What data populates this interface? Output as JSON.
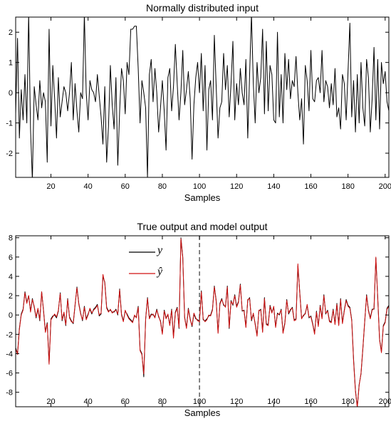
{
  "chart_data": [
    {
      "type": "line",
      "title": "Normally distributed input",
      "xlabel": "Samples",
      "ylabel": "",
      "xlim": [
        1,
        202
      ],
      "ylim": [
        -2.8,
        2.5
      ],
      "xticks": [
        20,
        40,
        60,
        80,
        100,
        120,
        140,
        160,
        180,
        200
      ],
      "yticks": [
        -2,
        -1,
        0,
        1,
        2
      ],
      "grid": false,
      "series": [
        {
          "color": "#000000",
          "x_start": 1,
          "values": [
            -0.7,
            1.8,
            -1.5,
            0.1,
            -0.9,
            0.6,
            -1.0,
            2.6,
            -1.2,
            -2.9,
            0.2,
            -0.4,
            -0.9,
            0.4,
            -0.5,
            0.0,
            -0.3,
            -2.3,
            2.1,
            -1.1,
            0.9,
            -0.2,
            -1.5,
            0.5,
            -0.8,
            -0.3,
            0.2,
            0.0,
            -0.6,
            0.0,
            1.0,
            -0.9,
            0.3,
            -0.6,
            -1.3,
            0.0,
            -0.2,
            2.6,
            0.0,
            -0.9,
            0.4,
            0.1,
            0.0,
            -0.3,
            0.6,
            -0.1,
            -0.8,
            -1.7,
            0.2,
            -2.3,
            -1.1,
            0.9,
            -0.4,
            -1.2,
            0.5,
            -2.4,
            -0.6,
            0.8,
            0.4,
            -0.7,
            1.0,
            0.6,
            2.1,
            2.1,
            2.2,
            2.2,
            0.8,
            -1.0,
            0.4,
            0.0,
            -0.5,
            -2.8,
            0.6,
            1.1,
            -0.3,
            0.8,
            0.0,
            -1.3,
            -0.5,
            0.4,
            -0.6,
            -1.9,
            0.5,
            0.8,
            -0.6,
            0.2,
            1.6,
            0.3,
            -0.9,
            0.0,
            1.4,
            -0.4,
            0.1,
            0.7,
            -0.2,
            -2.2,
            -0.4,
            0.5,
            1.0,
            0.0,
            1.3,
            -0.6,
            0.9,
            -1.9,
            0.1,
            0.4,
            -0.9,
            1.9,
            0.2,
            -1.5,
            -0.5,
            -0.3,
            1.3,
            0.1,
            0.9,
            -0.8,
            0.3,
            1.7,
            -0.9,
            0.3,
            -0.4,
            0.8,
            0.0,
            -0.4,
            1.1,
            -1.5,
            0.6,
            2.6,
            0.3,
            -1.0,
            1.0,
            0.0,
            0.5,
            2.1,
            -0.7,
            1.7,
            -0.6,
            0.9,
            0.6,
            -0.9,
            -1.0,
            2.0,
            -0.8,
            0.6,
            -1.0,
            1.3,
            0.1,
            1.1,
            -0.2,
            0.4,
            0.2,
            1.2,
            0.0,
            -0.9,
            -0.2,
            -1.7,
            0.9,
            0.4,
            -0.6,
            1.4,
            -0.2,
            -0.3,
            0.4,
            0.5,
            0.0,
            1.4,
            -0.3,
            0.4,
            0.2,
            -0.5,
            0.3,
            -0.4,
            0.8,
            -0.8,
            -0.5,
            -1.2,
            0.6,
            0.3,
            -0.9,
            0.7,
            2.3,
            -0.8,
            0.4,
            -1.3,
            0.6,
            -1.0,
            1.0,
            -0.5,
            -1.1,
            1.1,
            0.5,
            -1.3,
            -0.2,
            1.5,
            -0.9,
            1.1,
            -1.2,
            1.0,
            0.3,
            0.7,
            -0.3,
            -0.6,
            0.5,
            -1.0,
            0.1
          ]
        }
      ]
    },
    {
      "type": "line",
      "title": "True output and model output",
      "xlabel": "Samples",
      "ylabel": "",
      "xlim": [
        1,
        202
      ],
      "ylim": [
        -9.5,
        8.2
      ],
      "xticks": [
        20,
        40,
        60,
        80,
        100,
        120,
        140,
        160,
        180,
        200
      ],
      "yticks": [
        -8,
        -6,
        -4,
        -2,
        0,
        2,
        4,
        6,
        8
      ],
      "grid": false,
      "legend_position": "top-left",
      "vline_x": 100,
      "series": [
        {
          "name": "y",
          "color": "#000000",
          "x_start": 1,
          "values": [
            -3.4,
            -4.0,
            -1.4,
            0.1,
            0.6,
            2.4,
            1.3,
            2.0,
            0.4,
            1.7,
            0.8,
            -0.3,
            0.6,
            -0.6,
            2.4,
            0.5,
            -1.7,
            -0.8,
            -5.0,
            -0.4,
            -0.1,
            0.0,
            -0.3,
            0.4,
            2.3,
            -0.6,
            0.2,
            -1.1,
            1.7,
            -0.2,
            -0.6,
            -0.9,
            1.0,
            2.9,
            1.2,
            0.2,
            -0.6,
            0.9,
            -0.4,
            0.1,
            0.6,
            0.1,
            0.6,
            0.8,
            1.1,
            -0.1,
            0.1,
            4.0,
            3.4,
            0.8,
            0.4,
            0.5,
            0.3,
            0.3,
            0.6,
            0.0,
            2.7,
            0.1,
            -0.6,
            0.4,
            0.1,
            -0.3,
            -0.5,
            -0.7,
            -0.1,
            -0.2,
            0.9,
            -3.6,
            -4.0,
            -6.4,
            -0.4,
            1.8,
            -0.3,
            0.1,
            0.0,
            -0.2,
            0.6,
            -0.2,
            -0.6,
            -1.9,
            0.5,
            -0.3,
            0.0,
            -1.0,
            0.6,
            -2.2,
            0.3,
            0.8,
            -1.4,
            8.0,
            6.0,
            -0.2,
            -1.3,
            0.7,
            -0.4,
            -1.2,
            0.1,
            -0.4,
            -0.5,
            -0.6,
            2.5,
            -0.5,
            -0.6,
            -0.4,
            -0.1,
            0.0,
            0.6,
            3.0,
            1.5,
            -1.8,
            1.2,
            1.7,
            1.0,
            0.9,
            3.0,
            -1.4,
            1.5,
            1.0,
            2.1,
            0.9,
            1.4,
            3.2,
            0.4,
            0.5,
            -1.2,
            1.5,
            1.8,
            -0.6,
            0.1,
            -0.9,
            -2.1,
            0.4,
            0.6,
            -1.7,
            1.8,
            -0.9,
            -1.0,
            1.0,
            0.3,
            0.8,
            -1.2,
            0.2,
            0.0,
            0.6,
            -1.8,
            -0.8,
            1.6,
            0.1,
            0.5,
            0.8,
            -0.5,
            -0.4,
            5.1,
            2.4,
            -0.3,
            -0.1,
            0.2,
            1.0,
            -0.3,
            -0.1,
            -0.9,
            -1.9,
            0.4,
            -1.1,
            1.0,
            -0.3,
            2.1,
            0.1,
            0.5,
            -0.6,
            -0.7,
            0.6,
            -0.9,
            1.2,
            -1.0,
            1.7,
            -0.8,
            0.5,
            1.6,
            1.0,
            0.8,
            -0.5,
            -4.6,
            -7.8,
            -9.5,
            -7.2,
            -6.1,
            -3.5,
            -0.7,
            2.1,
            0.5,
            -0.3,
            0.6,
            0.6,
            5.9,
            1.8,
            -2.5,
            -3.8,
            -1.1,
            -0.7,
            0.7,
            1.0
          ]
        },
        {
          "name": "ŷ",
          "color": "#d01010",
          "x_start": 1,
          "values": [
            -3.5,
            -4.1,
            -1.5,
            0.0,
            0.5,
            2.3,
            1.2,
            2.0,
            0.3,
            1.6,
            0.9,
            -0.2,
            0.7,
            -0.5,
            2.4,
            0.4,
            -1.8,
            -0.9,
            -5.1,
            -0.5,
            -0.2,
            0.1,
            -0.2,
            0.5,
            2.2,
            -0.5,
            0.3,
            -1.0,
            1.6,
            -0.3,
            -0.7,
            -0.8,
            1.1,
            2.8,
            1.1,
            0.1,
            -0.5,
            0.8,
            -0.5,
            0.0,
            0.7,
            0.2,
            0.5,
            0.7,
            1.0,
            0.0,
            0.2,
            4.2,
            3.3,
            0.7,
            0.3,
            0.6,
            0.2,
            0.4,
            0.5,
            0.1,
            2.6,
            0.0,
            -0.7,
            0.5,
            0.0,
            -0.4,
            -0.6,
            -0.8,
            0.0,
            -0.3,
            0.8,
            -3.7,
            -4.1,
            -6.1,
            -0.5,
            1.7,
            -0.4,
            0.0,
            0.1,
            -0.3,
            0.5,
            -0.1,
            -0.7,
            -2.0,
            0.4,
            -0.4,
            0.1,
            -1.1,
            0.5,
            -2.4,
            0.2,
            0.7,
            -1.3,
            7.9,
            5.9,
            -0.3,
            -1.4,
            0.6,
            -0.5,
            -1.1,
            0.2,
            -0.3,
            -0.6,
            -0.7,
            2.4,
            -0.4,
            -0.7,
            -0.5,
            0.0,
            -0.1,
            0.5,
            2.9,
            1.4,
            -1.9,
            1.1,
            1.6,
            1.1,
            0.8,
            2.9,
            -1.3,
            1.4,
            1.1,
            2.0,
            0.8,
            1.3,
            3.1,
            0.5,
            0.4,
            -1.3,
            1.6,
            1.7,
            -0.5,
            0.2,
            -1.0,
            -2.2,
            0.5,
            0.5,
            -1.8,
            1.7,
            -1.0,
            -1.1,
            0.9,
            0.2,
            0.9,
            -1.3,
            0.1,
            0.1,
            0.5,
            -1.9,
            -0.9,
            1.5,
            0.2,
            0.6,
            0.7,
            -0.6,
            -0.5,
            5.3,
            2.3,
            -0.4,
            0.0,
            0.1,
            1.1,
            -0.2,
            -0.2,
            -1.0,
            -2.0,
            0.3,
            -1.2,
            0.9,
            -0.4,
            2.0,
            0.2,
            0.4,
            -0.7,
            -0.8,
            0.5,
            -1.0,
            1.1,
            -1.1,
            1.6,
            -0.9,
            0.4,
            1.5,
            0.9,
            0.7,
            -0.6,
            -4.8,
            -7.9,
            -9.6,
            -7.3,
            -6.0,
            -3.4,
            -0.6,
            2.0,
            0.4,
            -0.4,
            0.5,
            0.7,
            6.0,
            1.7,
            -2.6,
            -3.9,
            -1.2,
            -0.8,
            0.6,
            0.9
          ]
        }
      ]
    }
  ]
}
